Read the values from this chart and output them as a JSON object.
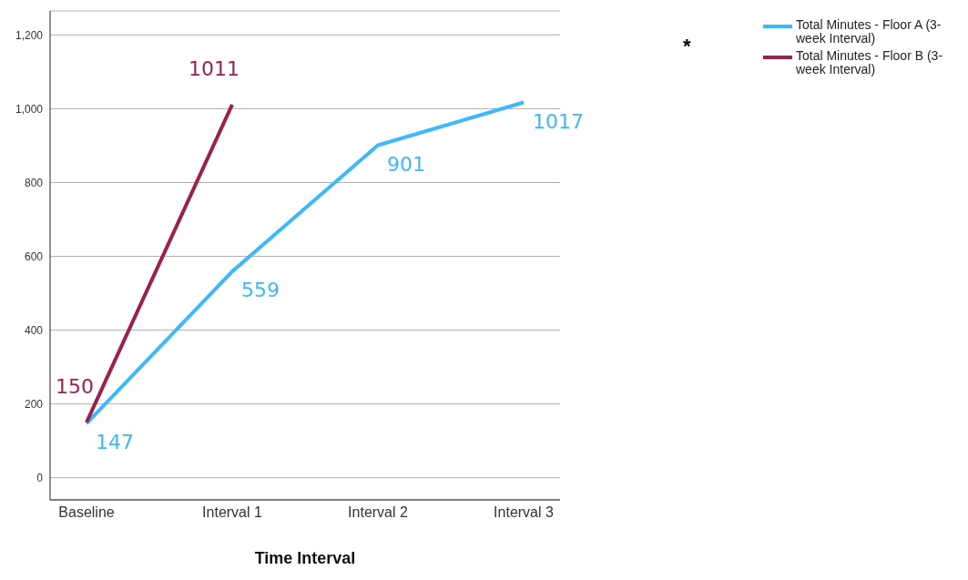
{
  "chart_data": {
    "type": "line",
    "xlabel": "Time Interval",
    "categories": [
      "Baseline",
      "Interval 1",
      "Interval 2",
      "Interval 3"
    ],
    "series": [
      {
        "name": "Total Minutes - Floor A (3-week Interval)",
        "color": "#3db8fa",
        "values": [
          147,
          559,
          901,
          1017
        ]
      },
      {
        "name": "Total Minutes - Floor  B (3-week Interval)",
        "color": "#9b1f4f",
        "values": [
          150,
          1011,
          null,
          null
        ]
      }
    ],
    "ylim": [
      -60,
      1265
    ],
    "yticks": [
      0,
      200,
      400,
      600,
      800,
      {
        "value": 1000,
        "label": "1,000"
      },
      {
        "value": 1200,
        "label": "1,200"
      }
    ],
    "grid": "y",
    "legend": "top right",
    "marker": "none",
    "line_style": "solid",
    "data_labels": true,
    "annotations": [
      "*"
    ]
  }
}
